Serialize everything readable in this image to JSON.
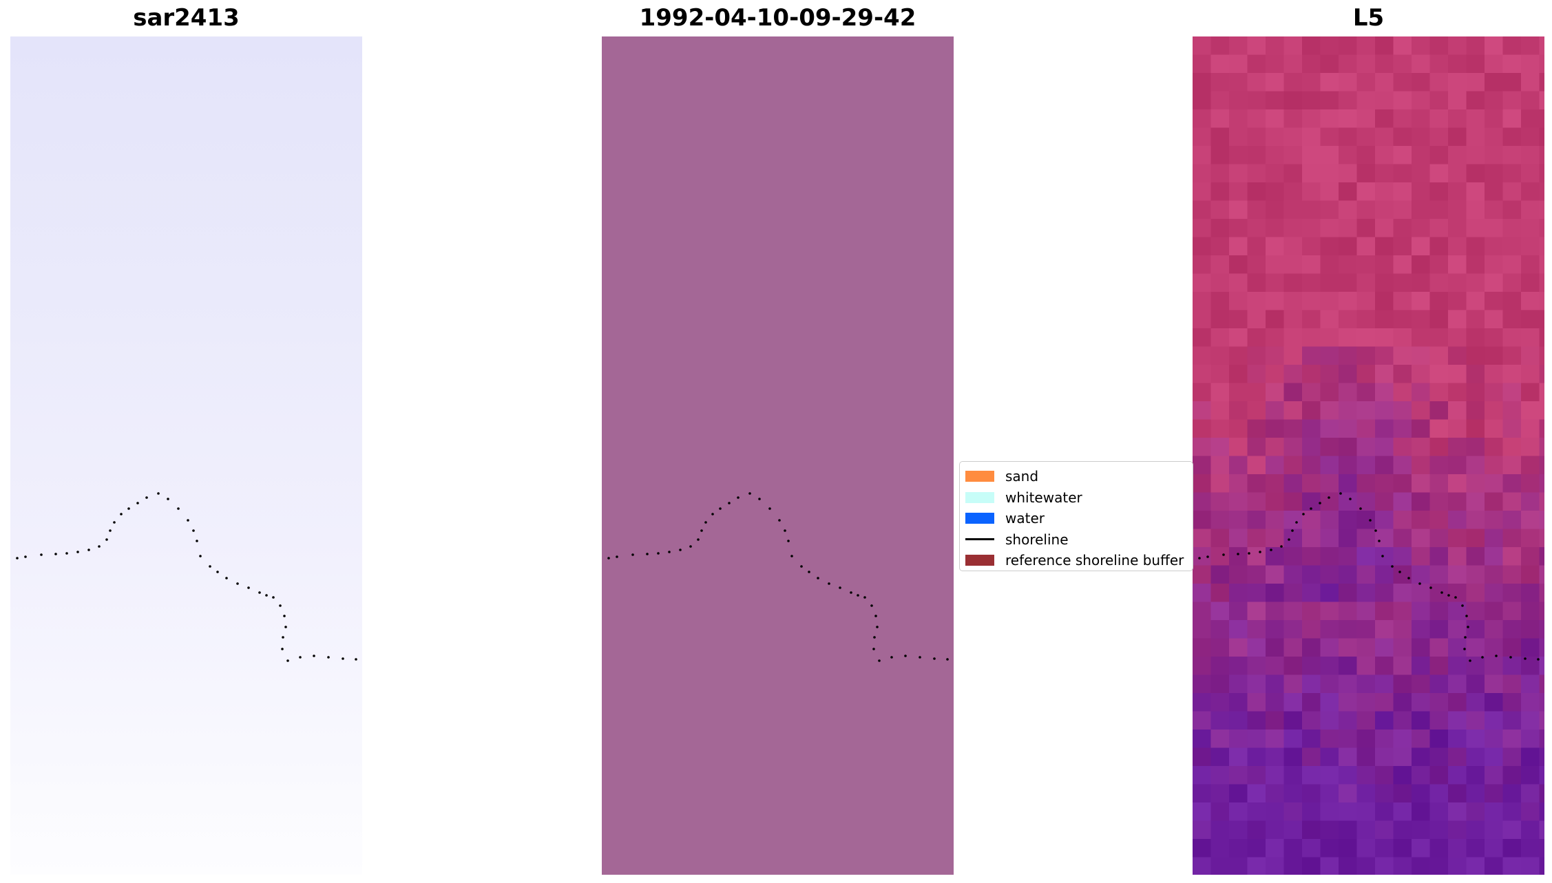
{
  "panels": [
    {
      "title": "sar2413"
    },
    {
      "title": "1992-04-10-09-29-42"
    },
    {
      "title": "L5"
    }
  ],
  "legend": {
    "items": [
      {
        "label": "sand",
        "color": "#ff8c3f",
        "kind": "patch"
      },
      {
        "label": "whitewater",
        "color": "#c7fdf8",
        "kind": "patch"
      },
      {
        "label": "water",
        "color": "#0a63ff",
        "kind": "patch"
      },
      {
        "label": "shoreline",
        "color": "#000000",
        "kind": "line"
      },
      {
        "label": "reference shoreline buffer",
        "color": "#9a2f33",
        "kind": "patch"
      }
    ]
  },
  "colors": {
    "date_panel_fill": "#a46796",
    "l5_top": "#c23c72",
    "l5_bottom": "#6e1fa0",
    "shoreline": "#000000"
  }
}
